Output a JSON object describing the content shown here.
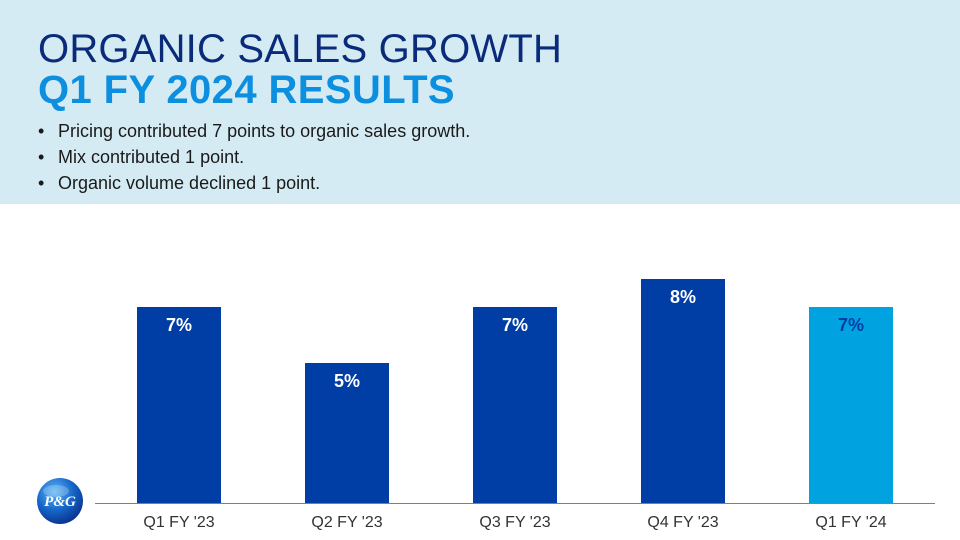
{
  "header": {
    "title_line1": "ORGANIC SALES GROWTH",
    "title_line2": "Q1 FY 2024 RESULTS",
    "bullets": [
      "Pricing contributed 7 points to organic sales growth.",
      "Mix contributed 1 point.",
      "Organic volume declined 1 point."
    ],
    "bullet_char": "•"
  },
  "logo": {
    "text": "P&G",
    "icon": "pg-logo-icon"
  },
  "colors": {
    "header_bg": "#d5ebf3",
    "title_dark": "#0a2a7a",
    "title_accent": "#0d8fe0",
    "bar_primary": "#003da5",
    "bar_highlight": "#00a3e0",
    "label_on_dark": "#ffffff",
    "label_on_light": "#003da5"
  },
  "chart_data": {
    "type": "bar",
    "categories": [
      "Q1 FY '23",
      "Q2 FY '23",
      "Q3 FY '23",
      "Q4 FY '23",
      "Q1 FY '24"
    ],
    "values": [
      7,
      5,
      7,
      8,
      7
    ],
    "data_labels": [
      "7%",
      "5%",
      "7%",
      "8%",
      "7%"
    ],
    "highlight_index": 4,
    "title": "",
    "xlabel": "",
    "ylabel": "",
    "ylim": [
      0,
      8.5
    ],
    "grid": false,
    "legend": "none"
  }
}
